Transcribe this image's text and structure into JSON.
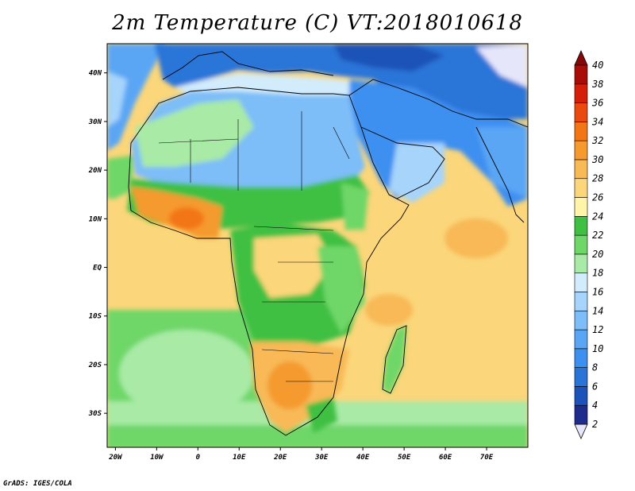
{
  "title": "2m Temperature (C) VT:2018010618",
  "footer": "GrADS: IGES/COLA",
  "map": {
    "lon_range": [
      -22,
      80
    ],
    "lat_range": [
      -37,
      46
    ],
    "lon_ticks": [
      "20W",
      "10W",
      "0",
      "10E",
      "20E",
      "30E",
      "40E",
      "50E",
      "60E",
      "70E"
    ],
    "lat_ticks": [
      "40N",
      "30N",
      "20N",
      "10N",
      "EQ",
      "10S",
      "20S",
      "30S"
    ]
  },
  "colorbar": {
    "levels": [
      "2",
      "4",
      "6",
      "8",
      "10",
      "12",
      "14",
      "16",
      "18",
      "20",
      "22",
      "24",
      "26",
      "28",
      "30",
      "32",
      "34",
      "36",
      "38",
      "40"
    ],
    "colors": [
      "#e6e6fa",
      "#1e2c8c",
      "#1d52b8",
      "#2a74d8",
      "#3d8ff0",
      "#5aa6f5",
      "#7dbdf8",
      "#a6d4fb",
      "#d2ecfc",
      "#a8eaa6",
      "#6ed768",
      "#3fc043",
      "#fff4a8",
      "#fbd67a",
      "#f8b957",
      "#f59a2e",
      "#f37616",
      "#eb4a0e",
      "#d51f0a",
      "#a80d08",
      "#840808"
    ]
  },
  "chart_data": {
    "type": "heatmap",
    "title": "2m Temperature (C) VT:2018010618",
    "xlabel": "",
    "ylabel": "",
    "x_ticks": [
      "20W",
      "10W",
      "0",
      "10E",
      "20E",
      "30E",
      "40E",
      "50E",
      "60E",
      "70E"
    ],
    "y_ticks": [
      "40N",
      "30N",
      "20N",
      "10N",
      "EQ",
      "10S",
      "20S",
      "30S"
    ],
    "xlim": [
      -22,
      80
    ],
    "ylim": [
      -37,
      46
    ],
    "colorbar_range": [
      2,
      40
    ],
    "colorbar_step": 2,
    "legend": "right"
  }
}
